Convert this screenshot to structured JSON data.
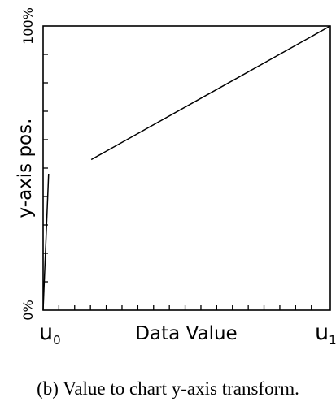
{
  "chart_data": {
    "type": "line",
    "xlabel": "Data Value",
    "ylabel": "y-axis pos.",
    "x_range_labels": {
      "start": "u",
      "start_sub": "0",
      "end": "u",
      "end_sub": "1"
    },
    "ylim": [
      0,
      100
    ],
    "y_tick_labels": [
      "0%",
      "100%"
    ],
    "xlim": [
      0,
      1
    ],
    "x_minor_ticks": [
      0.0549,
      0.1098,
      0.1648,
      0.2198,
      0.2747,
      0.3297,
      0.3846,
      0.4396,
      0.4945,
      0.5495,
      0.6044,
      0.6593,
      0.7143,
      0.7692,
      0.8242,
      0.8791,
      0.9341
    ],
    "y_minor_ticks": [
      10,
      20,
      30,
      40,
      50,
      60,
      70,
      80,
      90
    ],
    "series": [
      {
        "x": [
          0.0,
          0.0192
        ],
        "y": [
          0,
          48
        ]
      },
      {
        "x": [
          0.1676,
          1.0
        ],
        "y": [
          53,
          100
        ]
      }
    ],
    "grid": false,
    "line_color": "#000000"
  },
  "caption": "(b) Value to chart y-axis transform."
}
